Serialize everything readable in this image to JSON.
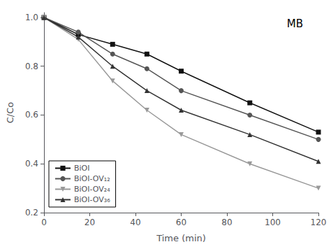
{
  "chart_data": {
    "type": "line",
    "x_label": "Time (min)",
    "y_label": "C/Co",
    "annotation": "MB",
    "xlim": [
      0,
      120
    ],
    "ylim": [
      0.2,
      1.02
    ],
    "xticks": [
      0,
      20,
      40,
      60,
      80,
      100,
      120
    ],
    "yticks": [
      0.2,
      0.4,
      0.6,
      0.8,
      {
        "value": 1,
        "label": "1.0"
      }
    ],
    "grid": false,
    "legend": "lower left",
    "series": [
      {
        "name": "BiOI",
        "color": "#111111",
        "marker": "square",
        "line_style": "solid",
        "x": [
          0,
          15,
          30,
          45,
          60,
          90,
          120
        ],
        "values": [
          1.0,
          0.93,
          0.89,
          0.85,
          0.78,
          0.65,
          0.53
        ]
      },
      {
        "name": "BiOI-OV₁₂",
        "color": "#555555",
        "marker": "circle",
        "line_style": "solid",
        "x": [
          0,
          15,
          30,
          45,
          60,
          90,
          120
        ],
        "values": [
          1.0,
          0.94,
          0.85,
          0.79,
          0.7,
          0.6,
          0.5
        ]
      },
      {
        "name": "BiOI-OV₂₄",
        "color": "#999999",
        "marker": "triangle_down",
        "line_style": "solid",
        "x": [
          0,
          15,
          30,
          45,
          60,
          90,
          120
        ],
        "values": [
          1.0,
          0.91,
          0.74,
          0.62,
          0.52,
          0.4,
          0.3
        ]
      },
      {
        "name": "BiOI-OV₃₆",
        "color": "#333333",
        "marker": "triangle_up",
        "line_style": "solid",
        "x": [
          0,
          15,
          30,
          45,
          60,
          90,
          120
        ],
        "values": [
          1.0,
          0.92,
          0.8,
          0.7,
          0.62,
          0.52,
          0.41
        ]
      }
    ]
  }
}
